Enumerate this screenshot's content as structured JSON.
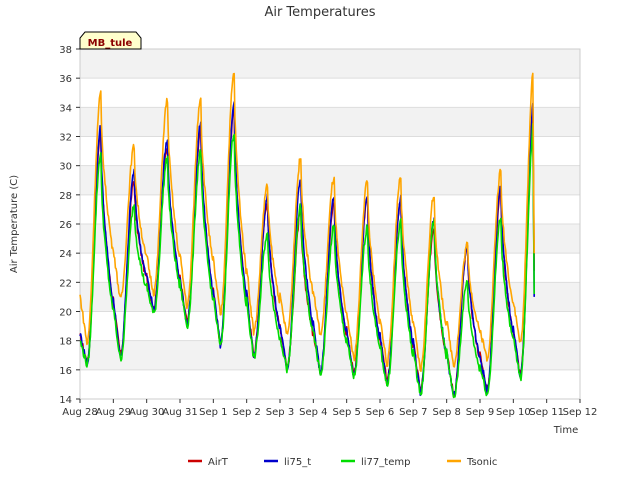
{
  "chart_data": {
    "type": "line",
    "title": "Air Temperatures",
    "xlabel": "Time",
    "ylabel": "Air Temperature (C)",
    "site_label": "MB_tule",
    "x_range": [
      "2024-08-28",
      "2024-09-12"
    ],
    "x_tick_labels": [
      "Aug 28",
      "Aug 29",
      "Aug 30",
      "Aug 31",
      "Sep 1",
      "Sep 2",
      "Sep 3",
      "Sep 4",
      "Sep 5",
      "Sep 6",
      "Sep 7",
      "Sep 8",
      "Sep 9",
      "Sep 10",
      "Sep 11",
      "Sep 12"
    ],
    "ylim": [
      14,
      38
    ],
    "y_ticks": [
      14,
      16,
      18,
      20,
      22,
      24,
      26,
      28,
      30,
      32,
      34,
      36,
      38
    ],
    "grid": true,
    "legend_position": "bottom",
    "series": [
      {
        "name": "AirT",
        "color": "#cc0000",
        "daily_min": [
          16.5,
          17.0,
          20.2,
          19.2,
          17.8,
          17.0,
          16.2,
          15.9,
          15.7,
          15.1,
          14.6,
          14.3,
          14.6,
          15.6
        ],
        "daily_max": [
          32.2,
          29.0,
          31.3,
          32.5,
          33.8,
          27.5,
          26.8,
          27.5,
          27.8,
          27.5,
          25.8,
          24.3,
          28.3,
          34.3
        ],
        "start": 18.3,
        "end": 22.8
      },
      {
        "name": "li75_t",
        "color": "#0000cc",
        "daily_min": [
          16.4,
          16.9,
          20.1,
          19.1,
          17.7,
          16.9,
          16.1,
          15.8,
          15.6,
          15.0,
          14.5,
          14.2,
          14.5,
          15.5
        ],
        "daily_max": [
          32.6,
          29.6,
          31.8,
          32.8,
          34.2,
          27.8,
          29.1,
          27.8,
          28.0,
          27.8,
          26.2,
          24.6,
          28.6,
          34.6
        ],
        "start": 18.5,
        "end": 21.0
      },
      {
        "name": "li77_temp",
        "color": "#00dd00",
        "daily_min": [
          16.3,
          16.7,
          19.8,
          19.0,
          17.6,
          16.8,
          16.0,
          15.7,
          15.5,
          14.9,
          14.3,
          14.1,
          14.3,
          15.4
        ],
        "daily_max": [
          30.8,
          27.3,
          30.5,
          31.0,
          32.3,
          25.3,
          27.2,
          25.8,
          25.8,
          26.1,
          26.3,
          22.0,
          26.4,
          33.1
        ],
        "start": 18.0,
        "end": 21.2
      },
      {
        "name": "Tsonic",
        "color": "#ffa500",
        "daily_min": [
          17.8,
          20.8,
          21.3,
          20.3,
          19.8,
          18.6,
          18.4,
          18.4,
          16.8,
          16.4,
          16.0,
          16.4,
          16.8,
          17.8
        ],
        "daily_max": [
          34.9,
          31.3,
          34.5,
          34.7,
          36.3,
          28.6,
          30.5,
          29.2,
          29.0,
          29.3,
          28.0,
          24.6,
          29.6,
          37.0
        ],
        "start": 21.1,
        "end": 24.0
      }
    ]
  }
}
